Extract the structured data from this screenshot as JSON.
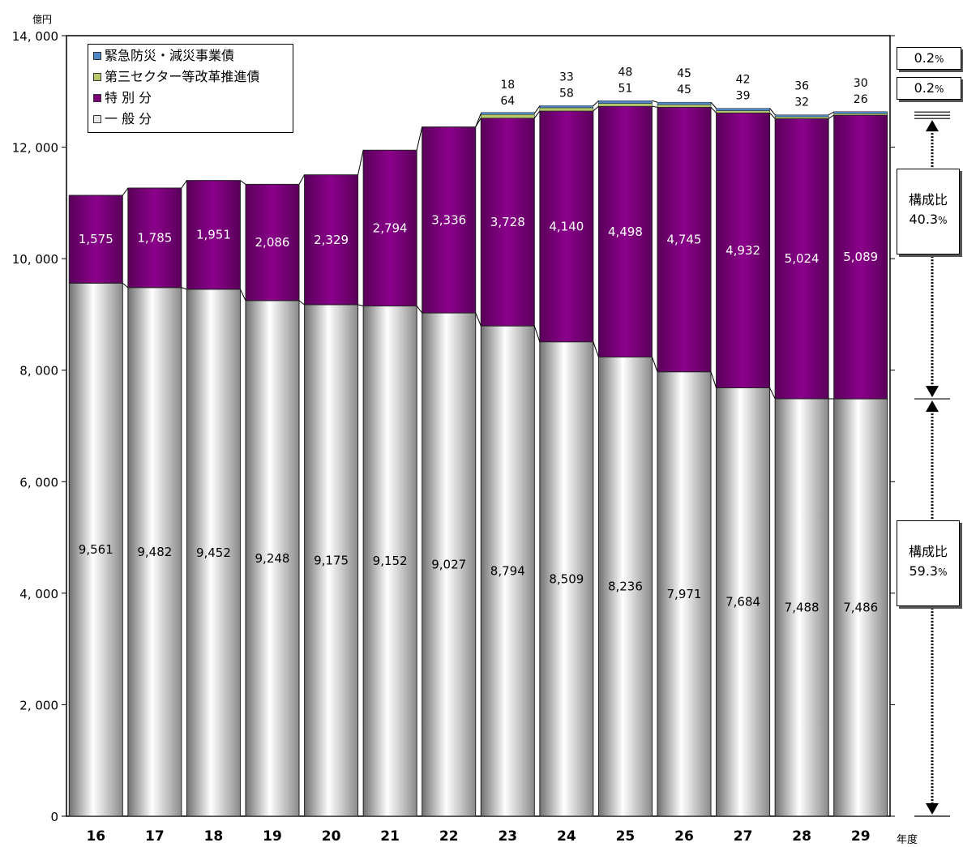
{
  "chart_data": {
    "type": "bar",
    "stacked": true,
    "unit_label": "億円",
    "xlabel": "年度",
    "categories": [
      "16",
      "17",
      "18",
      "19",
      "20",
      "21",
      "22",
      "23",
      "24",
      "25",
      "26",
      "27",
      "28",
      "29"
    ],
    "ylim": [
      0,
      14000
    ],
    "yticks": [
      "0",
      "2, 000",
      "4, 000",
      "6, 000",
      "8, 000",
      "10, 000",
      "12, 000",
      "14, 000"
    ],
    "series": [
      {
        "name": "一 般 分",
        "color": "#e6e6e6",
        "values": [
          9561,
          9482,
          9452,
          9248,
          9175,
          9152,
          9027,
          8794,
          8509,
          8236,
          7971,
          7684,
          7488,
          7486
        ],
        "labels": [
          "9,561",
          "9,482",
          "9,452",
          "9,248",
          "9,175",
          "9,152",
          "9,027",
          "8,794",
          "8,509",
          "8,236",
          "7,971",
          "7,684",
          "7,488",
          "7,486"
        ]
      },
      {
        "name": "特 別 分",
        "color": "#7a007a",
        "values": [
          1575,
          1785,
          1951,
          2086,
          2329,
          2794,
          3336,
          3728,
          4140,
          4498,
          4745,
          4932,
          5024,
          5089
        ],
        "labels": [
          "1,575",
          "1,785",
          "1,951",
          "2,086",
          "2,329",
          "2,794",
          "3,336",
          "3,728",
          "4,140",
          "4,498",
          "4,745",
          "4,932",
          "5,024",
          "5,089"
        ]
      },
      {
        "name": "第三セクター等改革推進債",
        "color": "#b5c96a",
        "values": [
          0,
          0,
          0,
          0,
          0,
          0,
          0,
          64,
          58,
          51,
          45,
          39,
          32,
          26
        ],
        "labels": [
          "",
          "",
          "",
          "",
          "",
          "",
          "",
          "64",
          "58",
          "51",
          "45",
          "39",
          "32",
          "26"
        ]
      },
      {
        "name": "緊急防災・減災事業債",
        "color": "#4f86c6",
        "values": [
          0,
          0,
          0,
          0,
          0,
          0,
          0,
          18,
          33,
          48,
          45,
          42,
          36,
          30
        ],
        "labels": [
          "",
          "",
          "",
          "",
          "",
          "",
          "",
          "18",
          "33",
          "48",
          "45",
          "42",
          "36",
          "30"
        ]
      }
    ],
    "legend_order": [
      3,
      2,
      1,
      0
    ],
    "legend_placement": "top-left",
    "grid": false
  },
  "ratio_boxes": {
    "disaster": {
      "value": "0.2",
      "pct": "%"
    },
    "third_sector": {
      "value": "0.2",
      "pct": "%"
    },
    "special": {
      "label": "構成比",
      "value": "40.3",
      "pct": "%"
    },
    "general": {
      "label": "構成比",
      "value": "59.3",
      "pct": "%"
    }
  }
}
